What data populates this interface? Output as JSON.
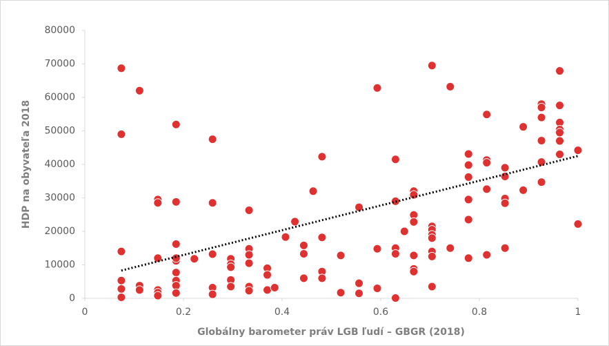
{
  "chart_data": {
    "type": "scatter",
    "xlabel": "Globálny barometer práv LGB ľudí – GBGR (2018)",
    "ylabel": "HDP na obyvateľa 2018",
    "xlim": [
      0,
      1
    ],
    "xticks": [
      0,
      0.2,
      0.4,
      0.6,
      0.8,
      1
    ],
    "ylim": [
      0,
      80000
    ],
    "yticks": [
      0,
      10000,
      20000,
      30000,
      40000,
      50000,
      60000,
      70000,
      80000
    ],
    "series": [
      {
        "color": "#e03131",
        "x": [
          0.074,
          0.074,
          0.074,
          0.074,
          0.074,
          0.074,
          0.111,
          0.111,
          0.111,
          0.148,
          0.148,
          0.148,
          0.148,
          0.148,
          0.148,
          0.185,
          0.185,
          0.185,
          0.185,
          0.185,
          0.185,
          0.185,
          0.185,
          0.185,
          0.222,
          0.259,
          0.259,
          0.259,
          0.259,
          0.259,
          0.296,
          0.296,
          0.296,
          0.296,
          0.296,
          0.333,
          0.333,
          0.333,
          0.333,
          0.333,
          0.333,
          0.37,
          0.37,
          0.37,
          0.385,
          0.407,
          0.426,
          0.444,
          0.444,
          0.444,
          0.463,
          0.481,
          0.481,
          0.481,
          0.481,
          0.519,
          0.519,
          0.556,
          0.556,
          0.556,
          0.593,
          0.593,
          0.593,
          0.63,
          0.63,
          0.63,
          0.63,
          0.63,
          0.648,
          0.667,
          0.667,
          0.667,
          0.667,
          0.667,
          0.667,
          0.667,
          0.704,
          0.704,
          0.704,
          0.704,
          0.704,
          0.704,
          0.704,
          0.704,
          0.741,
          0.741,
          0.778,
          0.778,
          0.778,
          0.778,
          0.778,
          0.778,
          0.815,
          0.815,
          0.815,
          0.815,
          0.815,
          0.852,
          0.852,
          0.852,
          0.852,
          0.852,
          0.889,
          0.889,
          0.926,
          0.926,
          0.926,
          0.926,
          0.926,
          0.926,
          0.963,
          0.963,
          0.963,
          0.963,
          0.963,
          0.963,
          0.963,
          1,
          1
        ],
        "values": [
          68700,
          49000,
          14000,
          5300,
          2800,
          300,
          62000,
          3800,
          2500,
          29500,
          28500,
          12000,
          2500,
          1700,
          800,
          51900,
          28800,
          16200,
          11200,
          12000,
          7700,
          5300,
          3800,
          1600,
          11800,
          47500,
          28500,
          13200,
          3200,
          1200,
          11800,
          10200,
          9300,
          5500,
          3500,
          26300,
          14800,
          13000,
          10500,
          3500,
          2300,
          9000,
          7000,
          2500,
          3200,
          18300,
          22900,
          15800,
          13300,
          6000,
          32000,
          42300,
          18200,
          8000,
          6000,
          12800,
          1700,
          27200,
          4500,
          1500,
          62800,
          14800,
          3000,
          41500,
          29000,
          15000,
          13300,
          100,
          20000,
          32000,
          30900,
          24900,
          22800,
          12800,
          8800,
          8000,
          69500,
          21500,
          20500,
          19000,
          18000,
          14000,
          12500,
          3500,
          63200,
          15000,
          43100,
          39800,
          36200,
          29500,
          23500,
          12000,
          54900,
          41300,
          40500,
          32600,
          13000,
          39000,
          36400,
          29800,
          28400,
          15000,
          51200,
          32300,
          58000,
          57000,
          54000,
          47100,
          40700,
          34700,
          67900,
          57600,
          52500,
          50400,
          49500,
          47000,
          43000,
          44200,
          22200
        ]
      }
    ],
    "trendline": {
      "color": "#000000",
      "x": [
        0.074,
        1
      ],
      "y": [
        8300,
        42500
      ]
    }
  }
}
